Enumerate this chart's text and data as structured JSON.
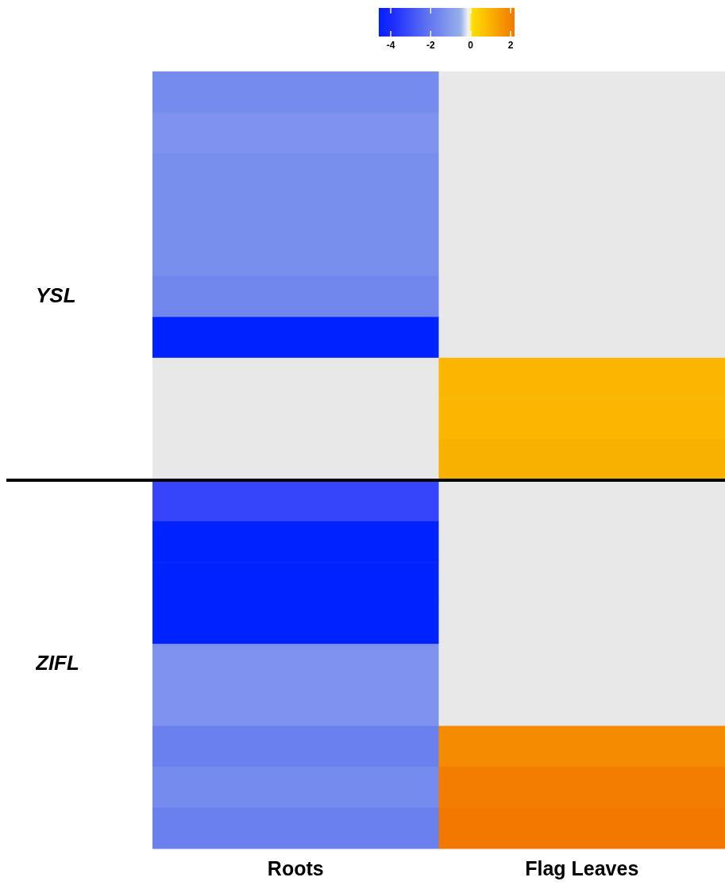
{
  "chart_data": {
    "type": "heatmap",
    "categories": [
      "Roots",
      "Flag Leaves"
    ],
    "y_categories": [
      null,
      null,
      null,
      null,
      null,
      "YSL",
      null,
      null,
      null,
      null,
      null,
      null,
      null,
      null,
      "ZIFL",
      null,
      null,
      null,
      null
    ],
    "clim": [
      -4.6,
      2.2
    ],
    "cticks": [
      -4,
      -2,
      0,
      2
    ],
    "cells": [
      [
        -1.5,
        null
      ],
      [
        -1.3,
        null
      ],
      [
        -1.4,
        null
      ],
      [
        -1.4,
        null
      ],
      [
        -1.4,
        null
      ],
      [
        -1.6,
        null
      ],
      [
        -4.6,
        null
      ],
      [
        null,
        0.9
      ],
      [
        null,
        0.9
      ],
      [
        null,
        1.0
      ],
      [
        -3.3,
        null
      ],
      [
        -4.6,
        null
      ],
      [
        -4.6,
        null
      ],
      [
        -4.6,
        null
      ],
      [
        -1.3,
        null
      ],
      [
        -1.3,
        null
      ],
      [
        -1.8,
        1.8
      ],
      [
        -1.5,
        2.1
      ],
      [
        -1.8,
        2.2
      ]
    ]
  }
}
